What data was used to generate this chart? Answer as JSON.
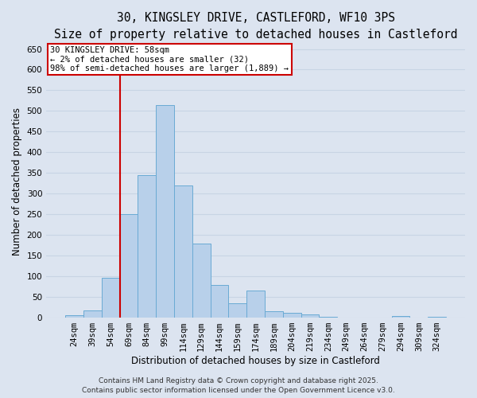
{
  "title_line1": "30, KINGSLEY DRIVE, CASTLEFORD, WF10 3PS",
  "title_line2": "Size of property relative to detached houses in Castleford",
  "xlabel": "Distribution of detached houses by size in Castleford",
  "ylabel": "Number of detached properties",
  "categories": [
    "24sqm",
    "39sqm",
    "54sqm",
    "69sqm",
    "84sqm",
    "99sqm",
    "114sqm",
    "129sqm",
    "144sqm",
    "159sqm",
    "174sqm",
    "189sqm",
    "204sqm",
    "219sqm",
    "234sqm",
    "249sqm",
    "264sqm",
    "279sqm",
    "294sqm",
    "309sqm",
    "324sqm"
  ],
  "values": [
    5,
    17,
    96,
    250,
    345,
    515,
    320,
    180,
    80,
    35,
    65,
    15,
    12,
    8,
    2,
    1,
    1,
    0,
    4,
    0,
    2
  ],
  "bar_color": "#b8d0ea",
  "bar_edge_color": "#6aaad4",
  "grid_color": "#c8d4e4",
  "background_color": "#dce4f0",
  "vline_x_index": 2.5,
  "vline_color": "#cc0000",
  "annotation_text": "30 KINGSLEY DRIVE: 58sqm\n← 2% of detached houses are smaller (32)\n98% of semi-detached houses are larger (1,889) →",
  "annotation_box_color": "#ffffff",
  "annotation_box_edge_color": "#cc0000",
  "ylim": [
    0,
    660
  ],
  "yticks": [
    0,
    50,
    100,
    150,
    200,
    250,
    300,
    350,
    400,
    450,
    500,
    550,
    600,
    650
  ],
  "footer_line1": "Contains HM Land Registry data © Crown copyright and database right 2025.",
  "footer_line2": "Contains public sector information licensed under the Open Government Licence v3.0.",
  "title_fontsize": 10.5,
  "subtitle_fontsize": 9.5,
  "axis_label_fontsize": 8.5,
  "tick_fontsize": 7.5,
  "annotation_fontsize": 7.5,
  "footer_fontsize": 6.5
}
